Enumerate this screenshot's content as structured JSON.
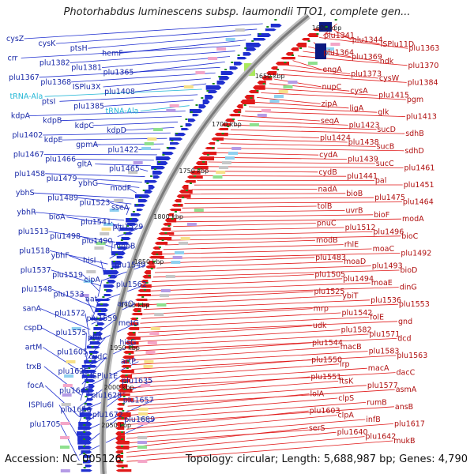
{
  "header": {
    "title": "Photorhabdus luminescens subsp. laumondii TTO1, complete gen..."
  },
  "footer": {
    "accession": "Accession: NC_005126",
    "summary": "Topology: circular; Length: 5,688,987 bp; Genes: 4,790"
  },
  "colors": {
    "plus_strand": "#1f2fd0",
    "minus_strand": "#e01818",
    "rna": "#25b7d6",
    "backbone": "#9a9a9a",
    "ticks": "#1e8a1e"
  },
  "ticks": [
    "1600 kbp",
    "1650 kbp",
    "1700 kbp",
    "1750 kbp",
    "1800 kbp",
    "1850 kbp",
    "1900 kbp",
    "1950 kbp",
    "2000 kbp",
    "2050 kbp"
  ],
  "left_labels": [
    {
      "text": "cysZ",
      "type": "gene"
    },
    {
      "text": "cysK",
      "type": "gene"
    },
    {
      "text": "ptsH",
      "type": "gene"
    },
    {
      "text": "hemF",
      "type": "gene"
    },
    {
      "text": "crr",
      "type": "gene"
    },
    {
      "text": "plu1382",
      "type": "gene"
    },
    {
      "text": "plu1381",
      "type": "gene"
    },
    {
      "text": "plu1365",
      "type": "gene"
    },
    {
      "text": "plu1367",
      "type": "gene"
    },
    {
      "text": "plu1368",
      "type": "gene"
    },
    {
      "text": "ISPlu3X",
      "type": "gene"
    },
    {
      "text": "plu1408",
      "type": "gene"
    },
    {
      "text": "tRNA-Ala",
      "type": "rna"
    },
    {
      "text": "ptsI",
      "type": "gene"
    },
    {
      "text": "plu1385",
      "type": "gene"
    },
    {
      "text": "tRNA-Ala",
      "type": "rna"
    },
    {
      "text": "kdpA",
      "type": "gene"
    },
    {
      "text": "kdpB",
      "type": "gene"
    },
    {
      "text": "kdpC",
      "type": "gene"
    },
    {
      "text": "kdpD",
      "type": "gene"
    },
    {
      "text": "plu1402",
      "type": "gene"
    },
    {
      "text": "kdpE",
      "type": "gene"
    },
    {
      "text": "gpmA",
      "type": "gene"
    },
    {
      "text": "plu1422",
      "type": "gene"
    },
    {
      "text": "plu1467",
      "type": "gene"
    },
    {
      "text": "plu1466",
      "type": "gene"
    },
    {
      "text": "gltA",
      "type": "gene"
    },
    {
      "text": "plu1465",
      "type": "gene"
    },
    {
      "text": "plu1458",
      "type": "gene"
    },
    {
      "text": "plu1479",
      "type": "gene"
    },
    {
      "text": "ybhG",
      "type": "gene"
    },
    {
      "text": "modF",
      "type": "gene"
    },
    {
      "text": "ybhS",
      "type": "gene"
    },
    {
      "text": "plu1489",
      "type": "gene"
    },
    {
      "text": "plu1523",
      "type": "gene"
    },
    {
      "text": "sseA",
      "type": "gene"
    },
    {
      "text": "ybhR",
      "type": "gene"
    },
    {
      "text": "bioA",
      "type": "gene"
    },
    {
      "text": "plu1541",
      "type": "gene"
    },
    {
      "text": "plu1529",
      "type": "gene"
    },
    {
      "text": "plu1513",
      "type": "gene"
    },
    {
      "text": "plu1498",
      "type": "gene"
    },
    {
      "text": "plu1490",
      "type": "gene"
    },
    {
      "text": "moeB",
      "type": "gene"
    },
    {
      "text": "plu1518",
      "type": "gene"
    },
    {
      "text": "ybhF",
      "type": "gene"
    },
    {
      "text": "hisI",
      "type": "gene"
    },
    {
      "text": "plu1549",
      "type": "gene"
    },
    {
      "text": "plu1537",
      "type": "gene"
    },
    {
      "text": "plu1519",
      "type": "gene"
    },
    {
      "text": "cipA",
      "type": "gene"
    },
    {
      "text": "plu1562",
      "type": "gene"
    },
    {
      "text": "plu1548",
      "type": "gene"
    },
    {
      "text": "plu1533",
      "type": "gene"
    },
    {
      "text": "aat",
      "type": "gene"
    },
    {
      "text": "artQ",
      "type": "gene"
    },
    {
      "text": "sanA",
      "type": "gene"
    },
    {
      "text": "plu1572",
      "type": "gene"
    },
    {
      "text": "plu1559",
      "type": "gene"
    },
    {
      "text": "metG",
      "type": "gene"
    },
    {
      "text": "cspD",
      "type": "gene"
    },
    {
      "text": "plu1575",
      "type": "gene"
    },
    {
      "text": "pflA",
      "type": "gene"
    },
    {
      "text": "hisG",
      "type": "gene"
    },
    {
      "text": "artM",
      "type": "gene"
    },
    {
      "text": "plu1605",
      "type": "gene"
    },
    {
      "text": "cydC",
      "type": "gene"
    },
    {
      "text": "artP",
      "type": "gene"
    },
    {
      "text": "trxB",
      "type": "gene"
    },
    {
      "text": "plu1625",
      "type": "gene"
    },
    {
      "text": "ISPlu1E",
      "type": "gene"
    },
    {
      "text": "plu1635",
      "type": "gene"
    },
    {
      "text": "focA",
      "type": "gene"
    },
    {
      "text": "plu1641",
      "type": "gene"
    },
    {
      "text": "plu1628",
      "type": "gene"
    },
    {
      "text": "plu1657",
      "type": "gene"
    },
    {
      "text": "ISPlu6I",
      "type": "gene"
    },
    {
      "text": "plu1656",
      "type": "gene"
    },
    {
      "text": "plu1672",
      "type": "gene"
    },
    {
      "text": "plu1689",
      "type": "gene"
    },
    {
      "text": "plu1705",
      "type": "gene"
    }
  ],
  "right_labels": [
    {
      "text": "plu1341"
    },
    {
      "text": "plu1344"
    },
    {
      "text": "ISPlu11D"
    },
    {
      "text": "plu1363"
    },
    {
      "text": "plu1364"
    },
    {
      "text": "plu1369"
    },
    {
      "text": "ndk"
    },
    {
      "text": "plu1370"
    },
    {
      "text": "engA"
    },
    {
      "text": "plu1373"
    },
    {
      "text": "cysW"
    },
    {
      "text": "plu1384"
    },
    {
      "text": "nupC"
    },
    {
      "text": "cysA"
    },
    {
      "text": "plu1415"
    },
    {
      "text": "pgm"
    },
    {
      "text": "zipA"
    },
    {
      "text": "ligA"
    },
    {
      "text": "glk"
    },
    {
      "text": "plu1413"
    },
    {
      "text": "seqA"
    },
    {
      "text": "plu1423"
    },
    {
      "text": "sucD"
    },
    {
      "text": "sdhB"
    },
    {
      "text": "plu1424"
    },
    {
      "text": "plu1438"
    },
    {
      "text": "sucB"
    },
    {
      "text": "sdhD"
    },
    {
      "text": "cydA"
    },
    {
      "text": "plu1439"
    },
    {
      "text": "sucC"
    },
    {
      "text": "plu1461"
    },
    {
      "text": "cydB"
    },
    {
      "text": "plu1441"
    },
    {
      "text": "pal"
    },
    {
      "text": "plu1451"
    },
    {
      "text": "nadA"
    },
    {
      "text": "bioB"
    },
    {
      "text": "plu1475"
    },
    {
      "text": "plu1464"
    },
    {
      "text": "tolB"
    },
    {
      "text": "uvrB"
    },
    {
      "text": "bioF"
    },
    {
      "text": "modA"
    },
    {
      "text": "pnuC"
    },
    {
      "text": "plu1512"
    },
    {
      "text": "plu1496"
    },
    {
      "text": "bioC"
    },
    {
      "text": "modB"
    },
    {
      "text": "rhlE"
    },
    {
      "text": "moaC"
    },
    {
      "text": "plu1492"
    },
    {
      "text": "plu1483"
    },
    {
      "text": "moaD"
    },
    {
      "text": "plu1493"
    },
    {
      "text": "bioD"
    },
    {
      "text": "plu1505"
    },
    {
      "text": "plu1494"
    },
    {
      "text": "moaE"
    },
    {
      "text": "dinG"
    },
    {
      "text": "plu1525"
    },
    {
      "text": "ybiT"
    },
    {
      "text": "plu1536"
    },
    {
      "text": "plu1553"
    },
    {
      "text": "mrp"
    },
    {
      "text": "plu1542"
    },
    {
      "text": "folE"
    },
    {
      "text": "gnd"
    },
    {
      "text": "udk"
    },
    {
      "text": "plu1582"
    },
    {
      "text": "plu1571"
    },
    {
      "text": "dcd"
    },
    {
      "text": "plu1544"
    },
    {
      "text": "macB"
    },
    {
      "text": "plu1583"
    },
    {
      "text": "plu1563"
    },
    {
      "text": "plu1550"
    },
    {
      "text": "lrp"
    },
    {
      "text": "macA"
    },
    {
      "text": "dacC"
    },
    {
      "text": "plu1551"
    },
    {
      "text": "ftsK"
    },
    {
      "text": "plu1577"
    },
    {
      "text": "asmA"
    },
    {
      "text": "lolA"
    },
    {
      "text": "clpS"
    },
    {
      "text": "rumB"
    },
    {
      "text": "ansB"
    },
    {
      "text": "plu1603"
    },
    {
      "text": "clpA"
    },
    {
      "text": "infB"
    },
    {
      "text": "plu1617"
    },
    {
      "text": "serS"
    },
    {
      "text": "plu1640"
    },
    {
      "text": "plu1642"
    },
    {
      "text": "mukB"
    }
  ]
}
